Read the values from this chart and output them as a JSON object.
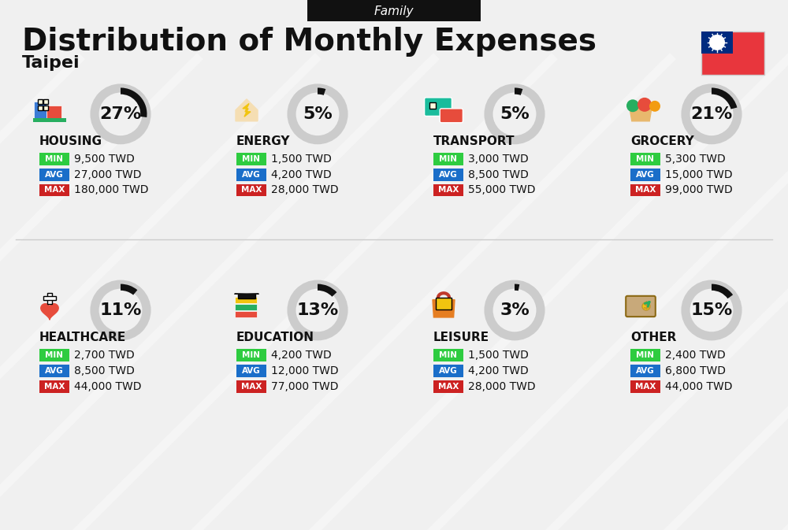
{
  "title": "Distribution of Monthly Expenses",
  "subtitle": "Taipei",
  "header_label": "Family",
  "bg_color": "#f0f0f0",
  "categories": [
    {
      "name": "HOUSING",
      "pct": 27,
      "min_val": "9,500 TWD",
      "avg_val": "27,000 TWD",
      "max_val": "180,000 TWD",
      "icon": "housing",
      "row": 0,
      "col": 0
    },
    {
      "name": "ENERGY",
      "pct": 5,
      "min_val": "1,500 TWD",
      "avg_val": "4,200 TWD",
      "max_val": "28,000 TWD",
      "icon": "energy",
      "row": 0,
      "col": 1
    },
    {
      "name": "TRANSPORT",
      "pct": 5,
      "min_val": "3,000 TWD",
      "avg_val": "8,500 TWD",
      "max_val": "55,000 TWD",
      "icon": "transport",
      "row": 0,
      "col": 2
    },
    {
      "name": "GROCERY",
      "pct": 21,
      "min_val": "5,300 TWD",
      "avg_val": "15,000 TWD",
      "max_val": "99,000 TWD",
      "icon": "grocery",
      "row": 0,
      "col": 3
    },
    {
      "name": "HEALTHCARE",
      "pct": 11,
      "min_val": "2,700 TWD",
      "avg_val": "8,500 TWD",
      "max_val": "44,000 TWD",
      "icon": "healthcare",
      "row": 1,
      "col": 0
    },
    {
      "name": "EDUCATION",
      "pct": 13,
      "min_val": "4,200 TWD",
      "avg_val": "12,000 TWD",
      "max_val": "77,000 TWD",
      "icon": "education",
      "row": 1,
      "col": 1
    },
    {
      "name": "LEISURE",
      "pct": 3,
      "min_val": "1,500 TWD",
      "avg_val": "4,200 TWD",
      "max_val": "28,000 TWD",
      "icon": "leisure",
      "row": 1,
      "col": 2
    },
    {
      "name": "OTHER",
      "pct": 15,
      "min_val": "2,400 TWD",
      "avg_val": "6,800 TWD",
      "max_val": "44,000 TWD",
      "icon": "other",
      "row": 1,
      "col": 3
    }
  ],
  "min_color": "#2ecc40",
  "avg_color": "#1a6ec9",
  "max_color": "#cc2222",
  "label_color": "#ffffff",
  "text_color": "#111111",
  "circle_color": "#cccccc",
  "arc_color": "#111111",
  "title_fontsize": 28,
  "subtitle_fontsize": 16,
  "pct_fontsize": 20,
  "cat_fontsize": 11,
  "val_fontsize": 10
}
